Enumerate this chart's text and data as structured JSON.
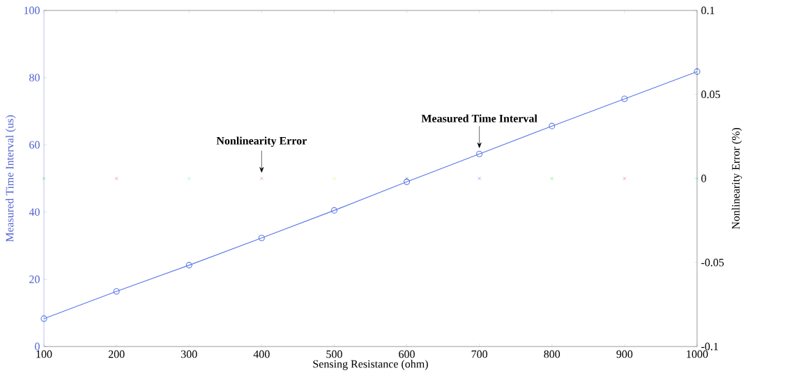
{
  "chart_data": {
    "type": "line",
    "xlabel": "Sensing Resistance (ohm)",
    "ylabel": "Measured Time Interval (us)",
    "y2label": "Nonlinearity Error (%)",
    "x": [
      100,
      200,
      300,
      400,
      500,
      600,
      700,
      800,
      900,
      1000
    ],
    "series": [
      {
        "color": "#5a78e8",
        "marker": "circle",
        "values": [
          8.3,
          16.4,
          24.2,
          32.3,
          40.5,
          49.0,
          57.3,
          65.6,
          73.7,
          81.8
        ]
      },
      {
        "type": "scatter",
        "axis": "y2",
        "marker": "cross",
        "colors": [
          "#20c020",
          "#e02020",
          "#40d0f0",
          "#c02080",
          "#e0e020",
          "#303030",
          "#2040e0",
          "#20c020",
          "#e02020",
          "#40d0f0"
        ],
        "values": [
          0,
          0,
          0,
          0,
          0,
          0,
          0,
          0,
          0,
          0
        ]
      }
    ],
    "xlim": [
      100,
      1000
    ],
    "xticks": [
      100,
      200,
      300,
      400,
      500,
      600,
      700,
      800,
      900,
      1000
    ],
    "ylim": [
      0,
      100
    ],
    "yticks": [
      0,
      20,
      40,
      60,
      80,
      100
    ],
    "y2lim": [
      -0.1,
      0.1
    ],
    "y2ticks": [
      -0.1,
      -0.05,
      0,
      0.05,
      0.1
    ],
    "annotations": [
      {
        "text": "Nonlinearity Error",
        "x": 400,
        "y": 50
      },
      {
        "text": "Measured Time Interval",
        "x": 700,
        "y": 57.3
      }
    ]
  }
}
